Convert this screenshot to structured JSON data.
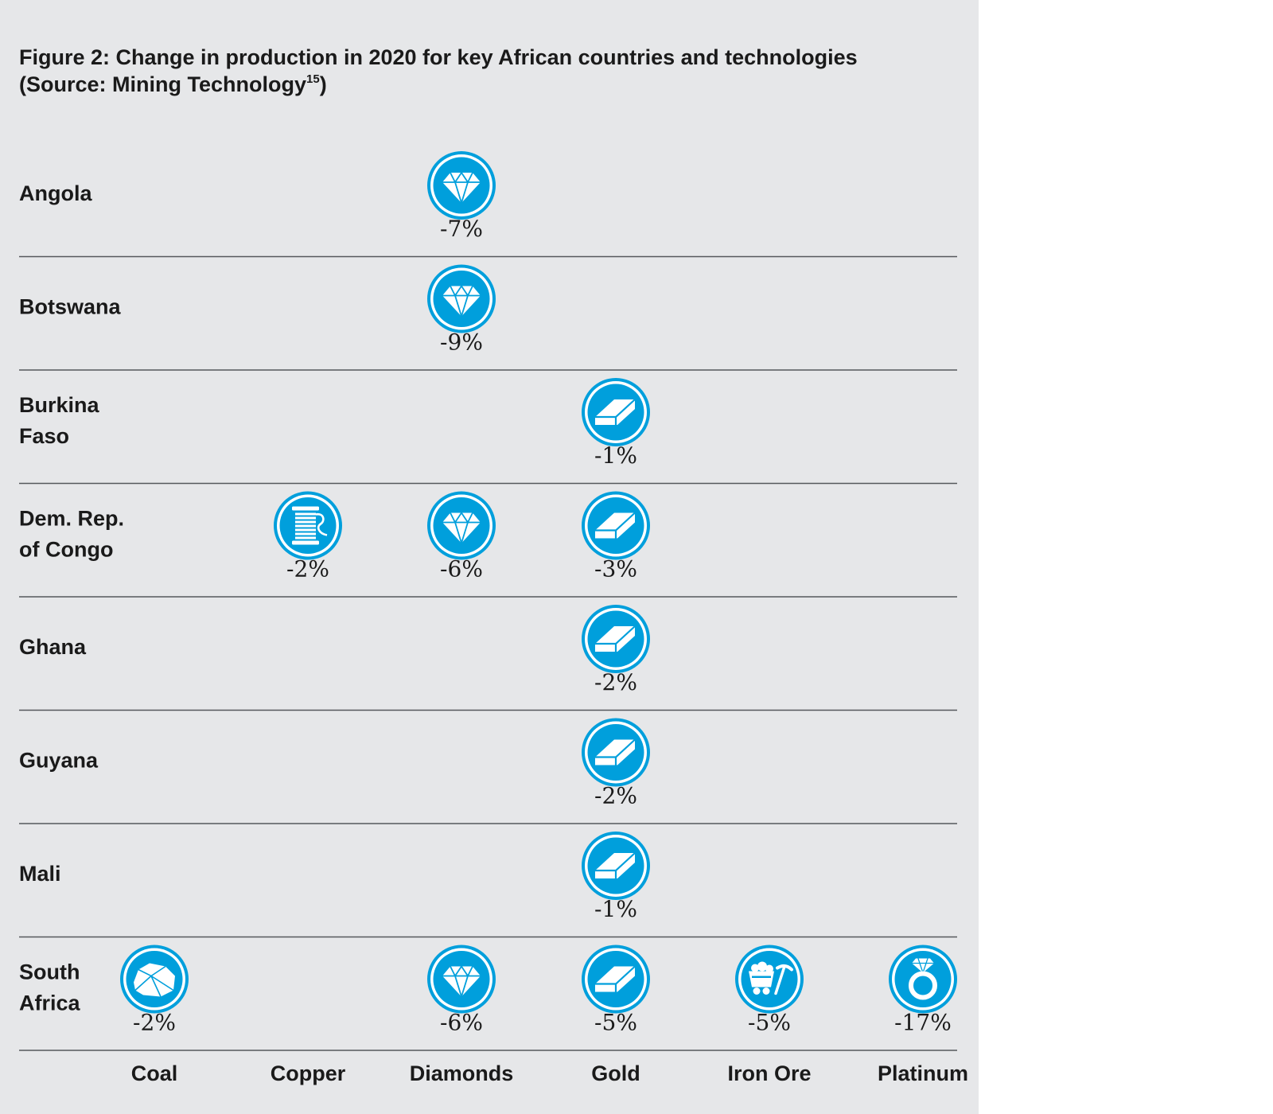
{
  "title": {
    "line1": "Figure 2: Change in production in 2020 for key African countries and technologies",
    "line2_prefix": "(Source: Mining Technology",
    "line2_sup": "15",
    "line2_suffix": ")"
  },
  "colors": {
    "panel_background": "#e6e7e9",
    "icon_fill": "#009fdc",
    "icon_ring": "#ffffff",
    "icon_outer": "#009fdc",
    "divider": "#55585c",
    "text": "#1a1a1a"
  },
  "chart_data": {
    "type": "table",
    "categories": [
      "Coal",
      "Copper",
      "Diamonds",
      "Gold",
      "Iron Ore",
      "Platinum"
    ],
    "category_icons": [
      "coal-rock-icon",
      "copper-spool-icon",
      "diamond-icon",
      "gold-bar-icon",
      "mine-cart-pickaxe-icon",
      "diamond-ring-icon"
    ],
    "rows": [
      {
        "country": [
          "Angola"
        ],
        "values": {
          "Diamonds": "-7%"
        }
      },
      {
        "country": [
          "Botswana"
        ],
        "values": {
          "Diamonds": "-9%"
        }
      },
      {
        "country": [
          "Burkina",
          "Faso"
        ],
        "values": {
          "Gold": "-1%"
        }
      },
      {
        "country": [
          "Dem. Rep.",
          "of Congo"
        ],
        "values": {
          "Copper": "-2%",
          "Diamonds": "-6%",
          "Gold": "-3%"
        }
      },
      {
        "country": [
          "Ghana"
        ],
        "values": {
          "Gold": "-2%"
        }
      },
      {
        "country": [
          "Guyana"
        ],
        "values": {
          "Gold": "-2%"
        }
      },
      {
        "country": [
          "Mali"
        ],
        "values": {
          "Gold": "-1%"
        }
      },
      {
        "country": [
          "South",
          "Africa"
        ],
        "values": {
          "Coal": "-2%",
          "Diamonds": "-6%",
          "Gold": "-5%",
          "Iron Ore": "-5%",
          "Platinum": "-17%"
        }
      }
    ]
  }
}
